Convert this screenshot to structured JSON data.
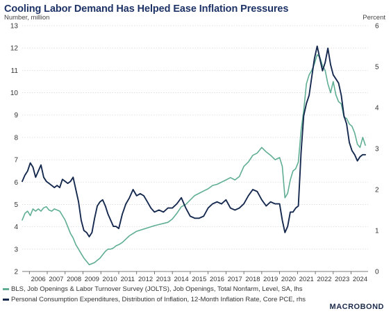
{
  "brand": "MACROBOND",
  "chart_data": {
    "type": "line",
    "title": "Cooling Labor Demand Has Helped Ease Inflation Pressures",
    "ylabel": "Number, million",
    "ylabel_right": "Percent",
    "ylim": [
      2,
      13
    ],
    "ylim_right": [
      0,
      6
    ],
    "yticks": [
      2,
      3,
      4,
      5,
      6,
      7,
      8,
      9,
      10,
      11,
      12,
      13
    ],
    "yticks_right": [
      0,
      1,
      2,
      3,
      4,
      5,
      6
    ],
    "xlim": [
      2005.6,
      2024.95
    ],
    "xticks": [
      "2006",
      "2007",
      "2008",
      "2009",
      "2010",
      "2011",
      "2012",
      "2013",
      "2014",
      "2015",
      "2016",
      "2017",
      "2018",
      "2019",
      "2020",
      "2021",
      "2022",
      "2023",
      "2024"
    ],
    "grid": true,
    "legend_position": "bottom",
    "series": [
      {
        "name": "BLS, Job Openings & Labor Turnover Survey (JOLTS), Job Openings, Total Nonfarm, Level, SA, lhs",
        "axis": "left",
        "color": "#5fae93",
        "x": [
          2005.6,
          2005.75,
          2005.9,
          2006.05,
          2006.2,
          2006.35,
          2006.5,
          2006.65,
          2006.8,
          2006.95,
          2007.1,
          2007.25,
          2007.4,
          2007.55,
          2007.7,
          2007.85,
          2008.0,
          2008.15,
          2008.3,
          2008.45,
          2008.6,
          2008.75,
          2008.9,
          2009.05,
          2009.2,
          2009.35,
          2009.5,
          2009.65,
          2009.8,
          2009.95,
          2010.1,
          2010.25,
          2010.4,
          2010.55,
          2010.7,
          2010.85,
          2011.0,
          2011.2,
          2011.4,
          2011.6,
          2011.8,
          2012.0,
          2012.2,
          2012.4,
          2012.6,
          2012.8,
          2013.0,
          2013.25,
          2013.5,
          2013.75,
          2014.0,
          2014.25,
          2014.5,
          2014.75,
          2015.0,
          2015.25,
          2015.5,
          2015.75,
          2016.0,
          2016.25,
          2016.5,
          2016.75,
          2017.0,
          2017.25,
          2017.5,
          2017.75,
          2018.0,
          2018.25,
          2018.5,
          2018.75,
          2019.0,
          2019.25,
          2019.5,
          2019.75,
          2020.0,
          2020.15,
          2020.3,
          2020.45,
          2020.6,
          2020.75,
          2020.9,
          2021.05,
          2021.2,
          2021.35,
          2021.5,
          2021.65,
          2021.8,
          2021.95,
          2022.1,
          2022.25,
          2022.4,
          2022.55,
          2022.7,
          2022.85,
          2023.0,
          2023.15,
          2023.3,
          2023.45,
          2023.6,
          2023.75,
          2023.9,
          2024.05,
          2024.2,
          2024.35,
          2024.5,
          2024.65,
          2024.8
        ],
        "y": [
          4.3,
          4.6,
          4.7,
          4.5,
          4.8,
          4.7,
          4.8,
          4.7,
          4.85,
          4.9,
          4.75,
          4.7,
          4.8,
          4.75,
          4.7,
          4.5,
          4.3,
          4.0,
          3.7,
          3.5,
          3.2,
          3.0,
          2.8,
          2.6,
          2.45,
          2.3,
          2.35,
          2.4,
          2.5,
          2.6,
          2.75,
          2.9,
          3.0,
          3.0,
          3.05,
          3.15,
          3.2,
          3.3,
          3.45,
          3.6,
          3.7,
          3.8,
          3.85,
          3.9,
          3.95,
          4.0,
          4.05,
          4.1,
          4.15,
          4.2,
          4.35,
          4.6,
          4.9,
          5.0,
          5.2,
          5.4,
          5.5,
          5.6,
          5.7,
          5.85,
          5.9,
          6.0,
          6.1,
          6.2,
          6.1,
          6.25,
          6.7,
          6.9,
          7.2,
          7.3,
          7.55,
          7.35,
          7.2,
          7.0,
          7.1,
          6.7,
          5.3,
          5.5,
          6.1,
          6.5,
          6.6,
          6.9,
          8.3,
          9.2,
          10.4,
          10.8,
          11.0,
          11.3,
          11.7,
          11.6,
          11.2,
          11.0,
          10.4,
          10.0,
          10.5,
          9.9,
          9.6,
          9.5,
          8.9,
          8.85,
          8.6,
          8.5,
          8.2,
          7.7,
          7.55,
          8.0,
          7.65
        ]
      },
      {
        "name": "Personal Consumption Expenditures, Distribution of Inflation, 12-Month Inflation Rate, Core PCE, rhs",
        "axis": "right",
        "color": "#15294f",
        "x": [
          2005.6,
          2005.75,
          2005.9,
          2006.05,
          2006.2,
          2006.35,
          2006.5,
          2006.65,
          2006.8,
          2006.95,
          2007.1,
          2007.25,
          2007.4,
          2007.55,
          2007.7,
          2007.85,
          2008.0,
          2008.15,
          2008.3,
          2008.45,
          2008.6,
          2008.75,
          2008.9,
          2009.05,
          2009.2,
          2009.35,
          2009.5,
          2009.65,
          2009.8,
          2009.95,
          2010.1,
          2010.25,
          2010.4,
          2010.55,
          2010.7,
          2010.85,
          2011.0,
          2011.2,
          2011.4,
          2011.6,
          2011.8,
          2012.0,
          2012.2,
          2012.4,
          2012.6,
          2012.8,
          2013.0,
          2013.25,
          2013.5,
          2013.75,
          2014.0,
          2014.25,
          2014.5,
          2014.75,
          2015.0,
          2015.25,
          2015.5,
          2015.75,
          2016.0,
          2016.25,
          2016.5,
          2016.75,
          2017.0,
          2017.25,
          2017.5,
          2017.75,
          2018.0,
          2018.25,
          2018.5,
          2018.75,
          2019.0,
          2019.25,
          2019.5,
          2019.75,
          2020.0,
          2020.15,
          2020.3,
          2020.45,
          2020.6,
          2020.75,
          2020.9,
          2021.05,
          2021.2,
          2021.35,
          2021.5,
          2021.65,
          2021.8,
          2021.95,
          2022.1,
          2022.25,
          2022.4,
          2022.55,
          2022.7,
          2022.85,
          2023.0,
          2023.15,
          2023.3,
          2023.45,
          2023.6,
          2023.75,
          2023.9,
          2024.05,
          2024.2,
          2024.35,
          2024.5,
          2024.65,
          2024.8
        ],
        "y": [
          2.2,
          2.35,
          2.45,
          2.65,
          2.55,
          2.3,
          2.45,
          2.6,
          2.3,
          2.2,
          2.15,
          2.1,
          2.05,
          2.1,
          2.05,
          2.25,
          2.2,
          2.15,
          2.2,
          2.3,
          2.0,
          1.7,
          1.25,
          1.0,
          0.95,
          0.85,
          0.95,
          1.3,
          1.6,
          1.7,
          1.75,
          1.6,
          1.4,
          1.25,
          1.1,
          1.1,
          1.05,
          1.4,
          1.65,
          1.8,
          2.0,
          1.85,
          1.9,
          1.85,
          1.7,
          1.55,
          1.45,
          1.5,
          1.45,
          1.55,
          1.55,
          1.65,
          1.8,
          1.55,
          1.35,
          1.3,
          1.3,
          1.35,
          1.55,
          1.65,
          1.7,
          1.65,
          1.75,
          1.55,
          1.5,
          1.55,
          1.65,
          1.85,
          2.0,
          1.95,
          1.75,
          1.6,
          1.7,
          1.65,
          1.65,
          1.25,
          0.95,
          1.1,
          1.45,
          1.45,
          1.55,
          1.6,
          2.9,
          3.8,
          4.1,
          4.3,
          4.75,
          5.2,
          5.5,
          5.2,
          4.9,
          5.1,
          5.45,
          5.05,
          4.8,
          4.7,
          4.6,
          4.3,
          3.8,
          3.6,
          3.15,
          2.95,
          2.85,
          2.7,
          2.8,
          2.85,
          2.85
        ]
      }
    ]
  }
}
